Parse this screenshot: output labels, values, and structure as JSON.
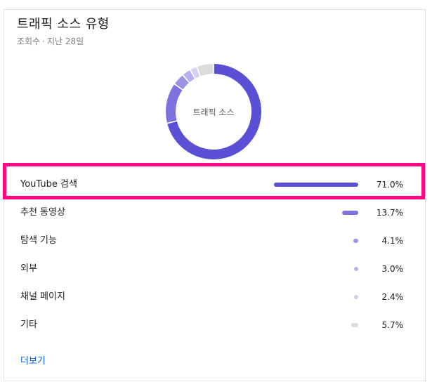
{
  "header": {
    "title": "트래픽 소스 유형",
    "subtitle_metric": "조회수",
    "subtitle_sep": "·",
    "subtitle_period": "지난 28일"
  },
  "donut": {
    "center_label": "트래픽 소스"
  },
  "rows": [
    {
      "label": "YouTube 검색",
      "percent": "71.0%",
      "value": 71.0,
      "color": "#5a50d6"
    },
    {
      "label": "추천 동영상",
      "percent": "13.7%",
      "value": 13.7,
      "color": "#7c73e0"
    },
    {
      "label": "탐색 기능",
      "percent": "4.1%",
      "value": 4.1,
      "color": "#9a94e8"
    },
    {
      "label": "외부",
      "percent": "3.0%",
      "value": 3.0,
      "color": "#b6b1ef"
    },
    {
      "label": "채널 페이지",
      "percent": "2.4%",
      "value": 2.4,
      "color": "#d3d0f6"
    },
    {
      "label": "기타",
      "percent": "5.7%",
      "value": 5.7,
      "color": "#dcdcdc"
    }
  ],
  "footer": {
    "more_label": "더보기"
  }
}
